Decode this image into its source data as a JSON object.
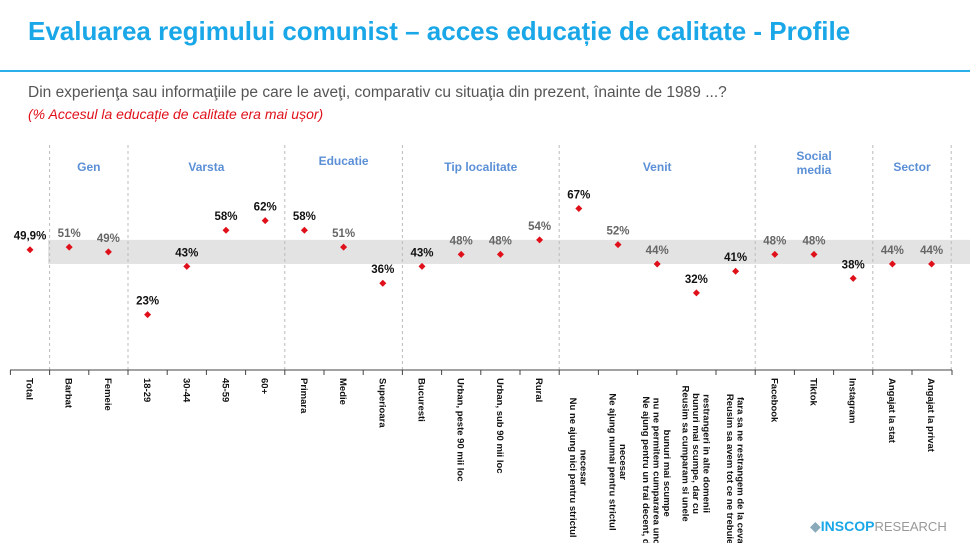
{
  "header": {
    "title": "Evaluarea regimului comunist – acces educație de calitate - Profile",
    "question": "Din experienţa sau informaţiile pe care le aveţi, comparativ cu situaţia din prezent, înainte de 1989 ...?",
    "note": "(% Accesul la educație de calitate era mai ușor)"
  },
  "logo": {
    "brand": "INSCOP",
    "suffix": "RESEARCH"
  },
  "colors": {
    "title": "#1aa7e8",
    "marker": "#e0101a",
    "group_heading": "#5b8fd6",
    "band": "#e3e3e3",
    "note": "#e0101a"
  },
  "chart_data": {
    "type": "scatter",
    "ylim": [
      0,
      95
    ],
    "band": [
      44,
      54
    ],
    "grid": false,
    "groups": [
      {
        "name": "",
        "start": 0,
        "end": 0
      },
      {
        "name": "Gen",
        "start": 1,
        "end": 2
      },
      {
        "name": "Varsta",
        "start": 3,
        "end": 6
      },
      {
        "name": "Educatie",
        "start": 7,
        "end": 9
      },
      {
        "name": "Tip localitate",
        "start": 10,
        "end": 13
      },
      {
        "name": "Venit",
        "start": 14,
        "end": 18
      },
      {
        "name": "Social media",
        "start": 19,
        "end": 21
      },
      {
        "name": "Sector",
        "start": 22,
        "end": 23
      }
    ],
    "categories": [
      "Total",
      "Barbat",
      "Femeie",
      "18-29",
      "30-44",
      "45-59",
      "60+",
      "Primara",
      "Medie",
      "Superioara",
      "Bucuresti",
      "Urban, peste 90 mii loc",
      "Urban, sub 90 mii loc",
      "Rural",
      "Nu ne ajung nici pentru strictul necesar",
      "Ne ajung numai pentru strictul necesar",
      "Ne ajung pentru un trai decent, dar nu ne permitem cumpararea unor bunuri mai scumpe",
      "Reusim sa cumparam si unele bunuri mai scumpe, dar cu restrangeri in alte domenii",
      "Reusim sa avem tot ce ne trebuie, fara sa ne restrangem de la ceva",
      "Facebook",
      "Tiktok",
      "Instagram",
      "Angajat la stat",
      "Angajat la privat"
    ],
    "category_lines": [
      [
        "Total"
      ],
      [
        "Barbat"
      ],
      [
        "Femeie"
      ],
      [
        "18-29"
      ],
      [
        "30-44"
      ],
      [
        "45-59"
      ],
      [
        "60+"
      ],
      [
        "Primara"
      ],
      [
        "Medie"
      ],
      [
        "Superioara"
      ],
      [
        "Bucuresti"
      ],
      [
        "Urban, peste 90 mii loc"
      ],
      [
        "Urban, sub 90 mii loc"
      ],
      [
        "Rural"
      ],
      [
        "Nu ne ajung nici pentru strictul",
        "necesar"
      ],
      [
        "Ne ajung numai pentru strictul",
        "necesar"
      ],
      [
        "Ne ajung pentru un trai decent, da",
        "nu ne permitem cumpararea unor",
        "bunuri mai scumpe"
      ],
      [
        "Reusim sa cumparam si unele",
        "bunuri mai scumpe, dar cu",
        "restrangeri in alte domenii"
      ],
      [
        "Reusim sa avem tot ce ne trebuie,",
        "fara sa ne restrangem de la ceva"
      ],
      [
        "Facebook"
      ],
      [
        "Tiktok"
      ],
      [
        "Instagram"
      ],
      [
        "Angajat la stat"
      ],
      [
        "Angajat la privat"
      ]
    ],
    "values": [
      49.9,
      51,
      49,
      23,
      43,
      58,
      62,
      58,
      51,
      36,
      43,
      48,
      48,
      54,
      67,
      52,
      44,
      32,
      41,
      48,
      48,
      38,
      44,
      44
    ],
    "labels": [
      "49,9%",
      "51%",
      "49%",
      "23%",
      "43%",
      "58%",
      "62%",
      "58%",
      "51%",
      "36%",
      "43%",
      "48%",
      "48%",
      "54%",
      "67%",
      "52%",
      "44%",
      "32%",
      "41%",
      "48%",
      "48%",
      "38%",
      "44%",
      "44%"
    ]
  }
}
